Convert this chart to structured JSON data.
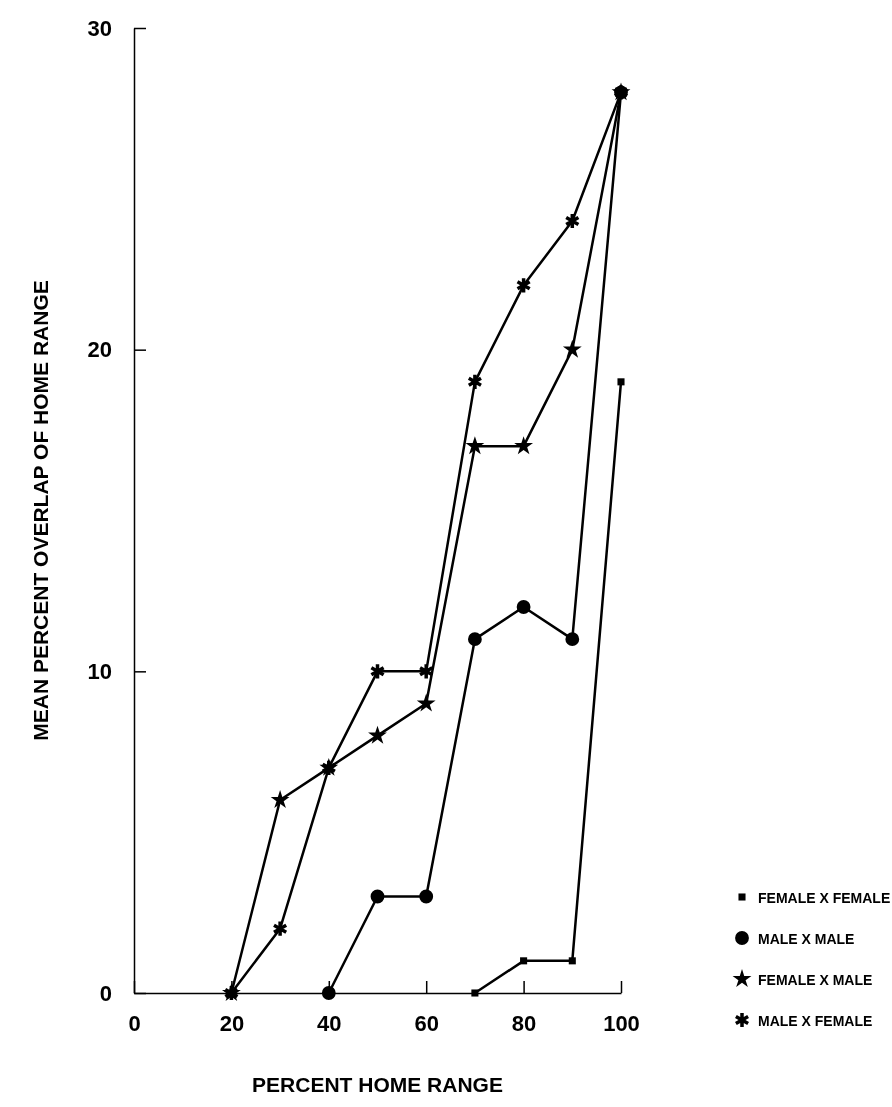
{
  "chart_data": {
    "type": "line",
    "xlabel": "PERCENT HOME RANGE",
    "ylabel": "MEAN PERCENT OVERLAP OF HOME RANGE",
    "xlim": [
      0,
      100
    ],
    "xticks": [
      0,
      20,
      40,
      60,
      80,
      100
    ],
    "ylim": [
      0,
      30
    ],
    "yticks": [
      0,
      10,
      20,
      30
    ],
    "grid": false,
    "legend": "bottom right",
    "line_style": "solid",
    "series": [
      {
        "name": "FEMALE X FEMALE",
        "color": "#000000",
        "marker": "square",
        "x": [
          70,
          80,
          90,
          100
        ],
        "values": [
          0,
          1,
          1,
          19
        ]
      },
      {
        "name": "MALE X MALE",
        "color": "#000000",
        "marker": "circle",
        "x": [
          40,
          50,
          60,
          70,
          80,
          90,
          100
        ],
        "values": [
          0,
          3,
          3,
          11,
          12,
          11,
          28
        ]
      },
      {
        "name": "FEMALE X MALE",
        "color": "#000000",
        "marker": "star",
        "x": [
          20,
          30,
          40,
          50,
          60,
          70,
          80,
          90,
          100
        ],
        "values": [
          0,
          6,
          7,
          8,
          9,
          17,
          17,
          20,
          28
        ]
      },
      {
        "name": "MALE X FEMALE",
        "color": "#000000",
        "marker": "cross",
        "x": [
          20,
          30,
          40,
          50,
          60,
          70,
          80,
          90,
          100
        ],
        "values": [
          0,
          2,
          7,
          10,
          10,
          19,
          22,
          24,
          28
        ]
      }
    ]
  }
}
